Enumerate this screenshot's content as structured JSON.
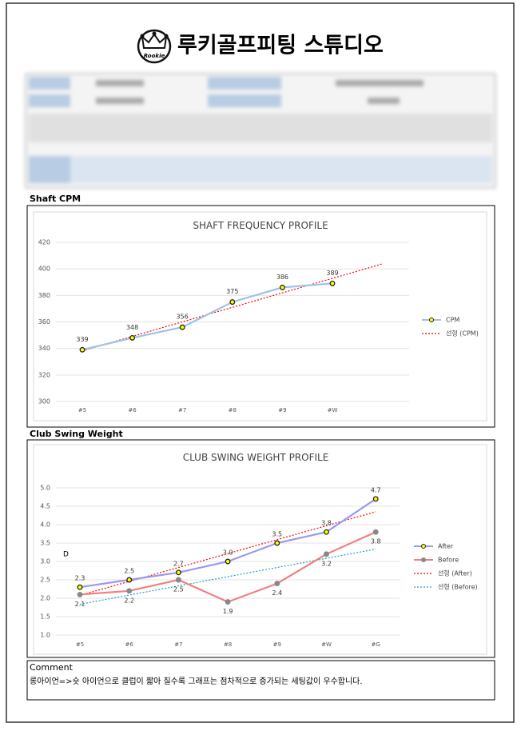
{
  "header": {
    "title": "루키골프피팅 스튜디오",
    "logo_text": "Rookie"
  },
  "sections": [
    "Shaft CPM",
    "Club Swing Weight"
  ],
  "chart_data": [
    {
      "type": "line",
      "title": "SHAFT FREQUENCY PROFILE",
      "categories": [
        "#5",
        "#6",
        "#7",
        "#8",
        "#9",
        "#W"
      ],
      "series": [
        {
          "name": "CPM",
          "color": "#9dc3e6",
          "marker": "#ffff00",
          "values": [
            339,
            348,
            356,
            375,
            386,
            389
          ],
          "trendline": "선형 (CPM)",
          "trend_color": "#ff0000"
        }
      ],
      "ylim": [
        300,
        420
      ],
      "yticks": [
        300,
        320,
        340,
        360,
        380,
        400,
        420
      ],
      "grid": true,
      "legend": "right"
    },
    {
      "type": "line",
      "title": "CLUB SWING WEIGHT PROFILE",
      "categories": [
        "#5",
        "#6",
        "#7",
        "#8",
        "#9",
        "#W",
        "#G"
      ],
      "series": [
        {
          "name": "After",
          "color": "#9999ee",
          "marker": "#ffff00",
          "values": [
            2.3,
            2.5,
            2.7,
            3.0,
            3.5,
            3.8,
            4.7
          ],
          "value_labels": [
            "2.3",
            "2.5",
            "2.7",
            "3.0",
            "3.5",
            "3.8",
            "4.7"
          ],
          "trendline": "선형 (After)",
          "trend_color": "#ff0000"
        },
        {
          "name": "Before",
          "color": "#f08080",
          "marker": "#888888",
          "values": [
            2.1,
            2.2,
            2.5,
            1.9,
            2.4,
            3.2,
            3.8
          ],
          "value_labels": [
            "2.1",
            "2.2",
            "2.5",
            "1.9",
            "2.4",
            "3.2",
            "3.8"
          ],
          "trendline": "선형 (Before)",
          "trend_color": "#17a2c8"
        }
      ],
      "ylim": [
        1.0,
        5.0
      ],
      "yticks": [
        {
          "value": 1.0,
          "label": "1.0"
        },
        {
          "value": 1.5,
          "label": "1.5"
        },
        {
          "value": 2.0,
          "label": "2.0"
        },
        {
          "value": 2.5,
          "label": "2.5"
        },
        {
          "value": 3.0,
          "label": "3.0"
        },
        {
          "value": 3.5,
          "label": "3.5"
        },
        {
          "value": 4.0,
          "label": "4.0"
        },
        {
          "value": 4.5,
          "label": "4.5"
        },
        {
          "value": 5.0,
          "label": "5.0"
        }
      ],
      "grid": true,
      "legend": "right",
      "annotation": "D"
    }
  ],
  "comment": {
    "label": "Comment",
    "text": "롱아이언=>숏 아이언으로 클럽이 짧아 질수록 그래프는 점차적으로 증가되는 세팅값이 우수합니다."
  }
}
